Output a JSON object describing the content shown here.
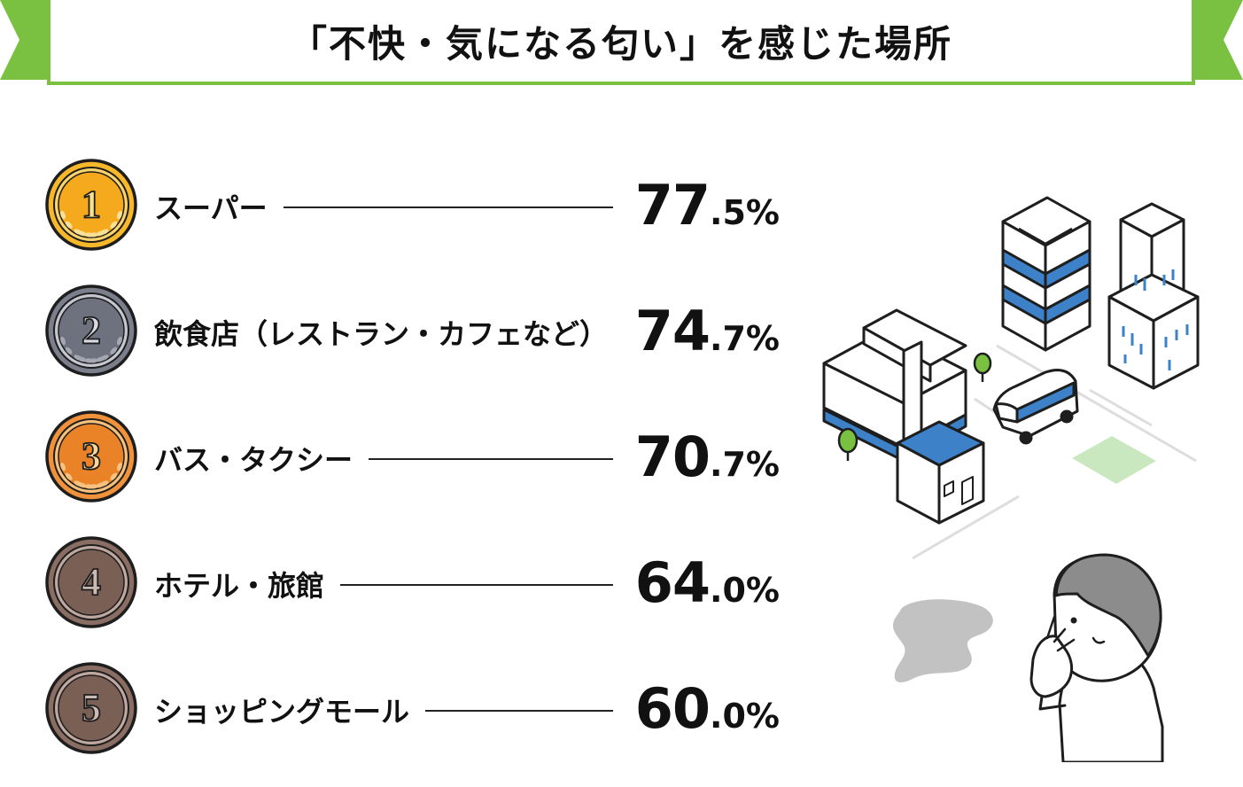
{
  "title": "「不快・気になる匂い」を感じた場所",
  "colors": {
    "ribbon": "#7ac142",
    "gold": "#f7b82a",
    "silver": "#7b7f8c",
    "bronze": "#f0913b",
    "brown": "#8a6d63",
    "building_accent": "#3d82c9",
    "field": "#c9e8c0"
  },
  "chart_data": {
    "type": "table",
    "title": "「不快・気になる匂い」を感じた場所",
    "unit": "%",
    "rows": [
      {
        "rank": "1",
        "label": "スーパー",
        "value": 77.5,
        "int": "77",
        "dec": ".5%",
        "medal": "gold"
      },
      {
        "rank": "2",
        "label": "飲食店（レストラン・カフェなど）",
        "value": 74.7,
        "int": "74",
        "dec": ".7%",
        "medal": "silver"
      },
      {
        "rank": "3",
        "label": "バス・タクシー",
        "value": 70.7,
        "int": "70",
        "dec": ".7%",
        "medal": "bronze"
      },
      {
        "rank": "4",
        "label": "ホテル・旅館",
        "value": 64.0,
        "int": "64",
        "dec": ".0%",
        "medal": "brown"
      },
      {
        "rank": "5",
        "label": "ショッピングモール",
        "value": 60.0,
        "int": "60",
        "dec": ".0%",
        "medal": "brown"
      }
    ]
  },
  "illustration": {
    "icons": [
      "office-building-icon",
      "skyscraper-icon",
      "bus-icon",
      "tree-icon",
      "shop-icon",
      "smell-cloud-icon",
      "person-covering-nose-icon"
    ]
  }
}
